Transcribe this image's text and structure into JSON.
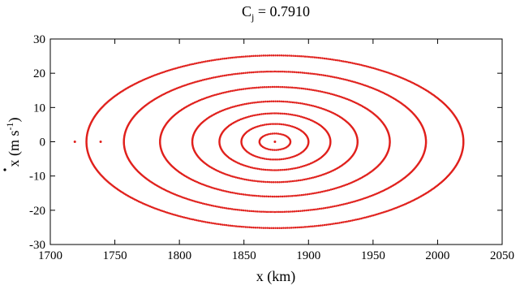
{
  "chart_data": {
    "type": "scatter",
    "title": "C",
    "title_subscript": "j",
    "title_suffix": " = 0.7910",
    "xlabel": "x (km)",
    "ylabel": "x (m s",
    "ylabel_superscript": "-1",
    "ylabel_close": ")",
    "xlim": [
      1700,
      2050
    ],
    "ylim": [
      -30,
      30
    ],
    "xticks": [
      1700,
      1750,
      1800,
      1850,
      1900,
      1950,
      2000,
      2050
    ],
    "yticks": [
      -30,
      -20,
      -10,
      0,
      10,
      20,
      30
    ],
    "grid": false,
    "color": "#e0201c",
    "center": {
      "x": 1874,
      "y": 0
    },
    "ellipses": [
      {
        "a": 12,
        "b": 2.4
      },
      {
        "a": 26,
        "b": 5.2
      },
      {
        "a": 43,
        "b": 8.3
      },
      {
        "a": 64,
        "b": 11.8
      },
      {
        "a": 89,
        "b": 16.0
      },
      {
        "a": 117,
        "b": 20.5
      },
      {
        "a": 146,
        "b": 25.2
      }
    ],
    "isolated_points": [
      {
        "x": 1874,
        "y": 0
      },
      {
        "x": 1719,
        "y": 0
      },
      {
        "x": 1739,
        "y": 0
      }
    ]
  }
}
